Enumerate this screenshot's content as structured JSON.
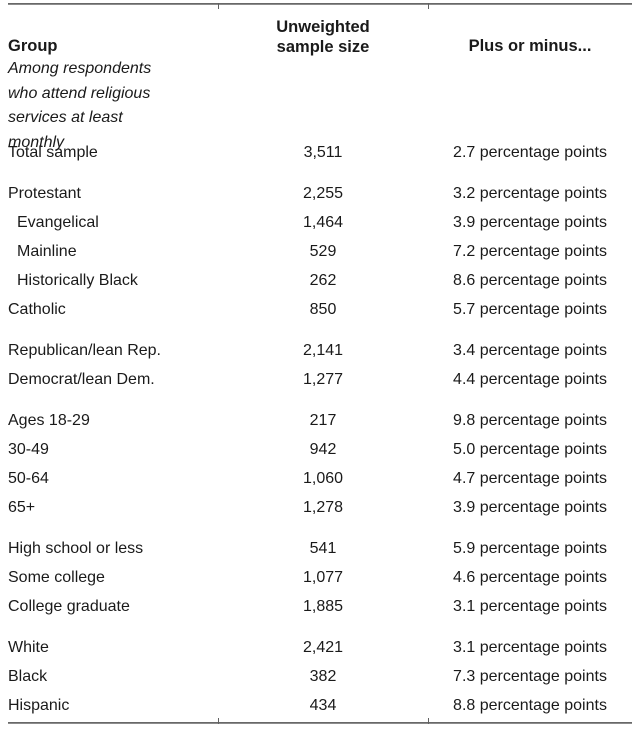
{
  "colors": {
    "background": "#ffffff",
    "text": "#1a1a1a",
    "rule_gray": "#7a7a7a",
    "tick_gray": "#616161"
  },
  "header": {
    "group_label": "Group",
    "group_subtitle": "Among respondents who attend religious services at least monthly",
    "sample_size_line1": "Unweighted",
    "sample_size_line2": "sample size",
    "margin_label": "Plus or minus..."
  },
  "table": {
    "sections": [
      {
        "rows": [
          {
            "group": "Total sample",
            "indent": false,
            "sample_size": "3,511",
            "margin": "2.7 percentage points"
          }
        ]
      },
      {
        "rows": [
          {
            "group": "Protestant",
            "indent": false,
            "sample_size": "2,255",
            "margin": "3.2 percentage points"
          },
          {
            "group": "Evangelical",
            "indent": true,
            "sample_size": "1,464",
            "margin": "3.9 percentage points"
          },
          {
            "group": "Mainline",
            "indent": true,
            "sample_size": "529",
            "margin": "7.2 percentage points"
          },
          {
            "group": "Historically Black",
            "indent": true,
            "sample_size": "262",
            "margin": "8.6 percentage points"
          },
          {
            "group": "Catholic",
            "indent": false,
            "sample_size": "850",
            "margin": "5.7 percentage points"
          }
        ]
      },
      {
        "rows": [
          {
            "group": "Republican/lean Rep.",
            "indent": false,
            "sample_size": "2,141",
            "margin": "3.4 percentage points"
          },
          {
            "group": "Democrat/lean Dem.",
            "indent": false,
            "sample_size": "1,277",
            "margin": "4.4 percentage points"
          }
        ]
      },
      {
        "rows": [
          {
            "group": "Ages 18-29",
            "indent": false,
            "sample_size": "217",
            "margin": "9.8 percentage points"
          },
          {
            "group": "30-49",
            "indent": false,
            "sample_size": "942",
            "margin": "5.0 percentage points"
          },
          {
            "group": "50-64",
            "indent": false,
            "sample_size": "1,060",
            "margin": "4.7 percentage points"
          },
          {
            "group": "65+",
            "indent": false,
            "sample_size": "1,278",
            "margin": "3.9 percentage points"
          }
        ]
      },
      {
        "rows": [
          {
            "group": "High school or less",
            "indent": false,
            "sample_size": "541",
            "margin": "5.9 percentage points"
          },
          {
            "group": "Some college",
            "indent": false,
            "sample_size": "1,077",
            "margin": "4.6 percentage points"
          },
          {
            "group": "College graduate",
            "indent": false,
            "sample_size": "1,885",
            "margin": "3.1 percentage points"
          }
        ]
      },
      {
        "rows": [
          {
            "group": "White",
            "indent": false,
            "sample_size": "2,421",
            "margin": "3.1 percentage points"
          },
          {
            "group": "Black",
            "indent": false,
            "sample_size": "382",
            "margin": "7.3 percentage points"
          },
          {
            "group": "Hispanic",
            "indent": false,
            "sample_size": "434",
            "margin": "8.8 percentage points"
          }
        ]
      }
    ]
  }
}
